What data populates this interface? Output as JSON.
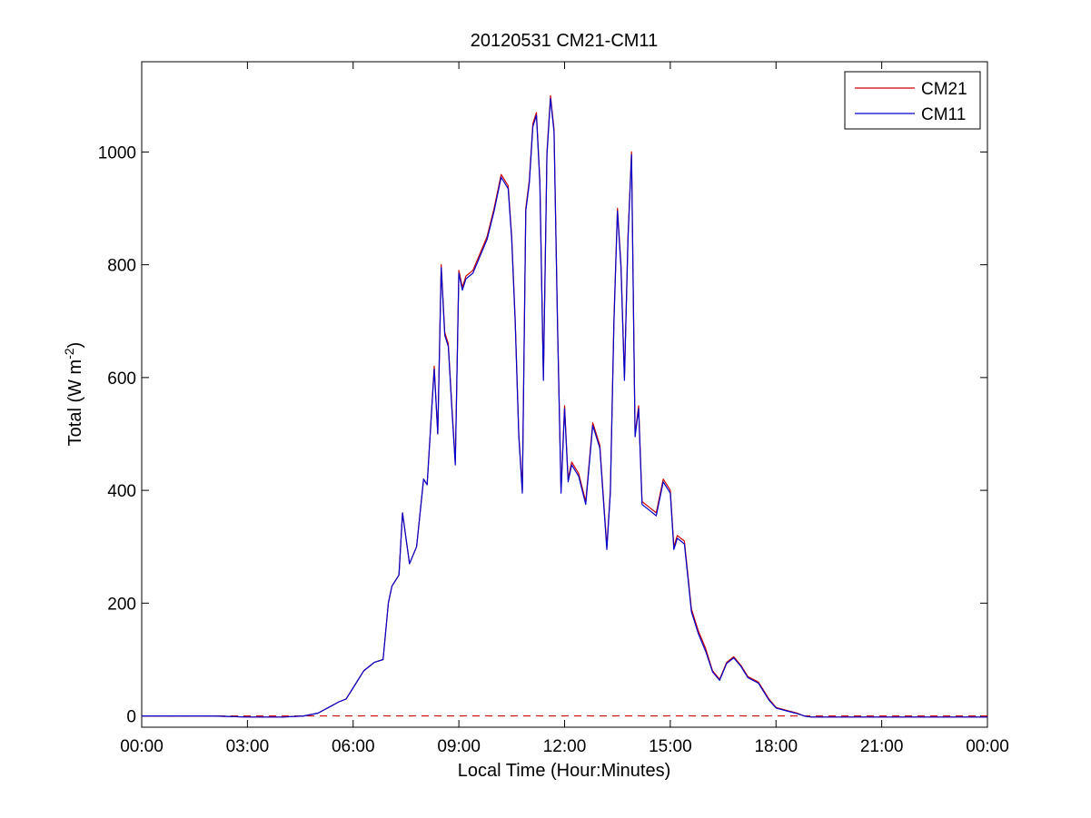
{
  "chart_data": {
    "type": "line",
    "title": "20120531 CM21-CM11",
    "xlabel": "Local Time (Hour:Minutes)",
    "ylabel": {
      "prefix": "Total (W m",
      "superscript": "-2",
      "suffix": ")"
    },
    "xlim": [
      0,
      24
    ],
    "ylim": [
      -20,
      1160
    ],
    "xticks": [
      0,
      3,
      6,
      9,
      12,
      15,
      18,
      21,
      24
    ],
    "xtick_labels": [
      "00:00",
      "03:00",
      "06:00",
      "09:00",
      "12:00",
      "15:00",
      "18:00",
      "21:00",
      "00:00"
    ],
    "yticks": [
      0,
      200,
      400,
      600,
      800,
      1000
    ],
    "ytick_labels": [
      "0",
      "200",
      "400",
      "600",
      "800",
      "1000"
    ],
    "grid": false,
    "legend_position": "top-right",
    "zero_reference": {
      "y": 0,
      "style": "dashed",
      "color": "#cc0000"
    },
    "series": [
      {
        "name": "CM21",
        "color": "#cc0000",
        "x": [
          0,
          2.0,
          3.0,
          4.0,
          4.6,
          5.0,
          5.3,
          5.6,
          5.8,
          6.0,
          6.3,
          6.6,
          6.85,
          7.0,
          7.1,
          7.3,
          7.4,
          7.6,
          7.8,
          8.0,
          8.1,
          8.3,
          8.4,
          8.5,
          8.6,
          8.7,
          8.8,
          8.9,
          9.0,
          9.1,
          9.2,
          9.4,
          9.6,
          9.8,
          10.0,
          10.2,
          10.4,
          10.5,
          10.6,
          10.7,
          10.8,
          10.9,
          11.0,
          11.1,
          11.2,
          11.3,
          11.4,
          11.5,
          11.6,
          11.7,
          11.8,
          11.9,
          12.0,
          12.1,
          12.2,
          12.4,
          12.6,
          12.8,
          13.0,
          13.2,
          13.3,
          13.4,
          13.5,
          13.6,
          13.7,
          13.8,
          13.9,
          14.0,
          14.1,
          14.2,
          14.4,
          14.6,
          14.8,
          15.0,
          15.1,
          15.2,
          15.4,
          15.6,
          15.8,
          16.0,
          16.2,
          16.4,
          16.6,
          16.8,
          17.0,
          17.2,
          17.5,
          17.8,
          18.0,
          18.3,
          18.6,
          18.8,
          19.0,
          20.0,
          21.0,
          22.0,
          24.0
        ],
        "y": [
          0,
          0,
          -2,
          -2,
          0,
          5,
          15,
          25,
          30,
          50,
          80,
          95,
          100,
          200,
          230,
          250,
          360,
          270,
          300,
          420,
          410,
          620,
          500,
          800,
          680,
          660,
          550,
          450,
          790,
          760,
          780,
          790,
          820,
          850,
          900,
          960,
          940,
          850,
          700,
          500,
          400,
          900,
          950,
          1050,
          1070,
          950,
          600,
          1000,
          1100,
          1040,
          700,
          400,
          550,
          420,
          450,
          430,
          380,
          520,
          480,
          300,
          400,
          700,
          900,
          800,
          600,
          850,
          1000,
          500,
          550,
          380,
          370,
          360,
          420,
          400,
          300,
          320,
          310,
          190,
          150,
          120,
          80,
          65,
          95,
          105,
          90,
          70,
          60,
          30,
          15,
          10,
          5,
          0,
          -2,
          -2,
          -2,
          -2,
          -2
        ]
      },
      {
        "name": "CM11",
        "color": "#0000cc",
        "x": [
          0,
          2.0,
          3.0,
          4.0,
          4.6,
          5.0,
          5.3,
          5.6,
          5.8,
          6.0,
          6.3,
          6.6,
          6.85,
          7.0,
          7.1,
          7.3,
          7.4,
          7.6,
          7.8,
          8.0,
          8.1,
          8.3,
          8.4,
          8.5,
          8.6,
          8.7,
          8.8,
          8.9,
          9.0,
          9.1,
          9.2,
          9.4,
          9.6,
          9.8,
          10.0,
          10.2,
          10.4,
          10.5,
          10.6,
          10.7,
          10.8,
          10.9,
          11.0,
          11.1,
          11.2,
          11.3,
          11.4,
          11.5,
          11.6,
          11.7,
          11.8,
          11.9,
          12.0,
          12.1,
          12.2,
          12.4,
          12.6,
          12.8,
          13.0,
          13.2,
          13.3,
          13.4,
          13.5,
          13.6,
          13.7,
          13.8,
          13.9,
          14.0,
          14.1,
          14.2,
          14.4,
          14.6,
          14.8,
          15.0,
          15.1,
          15.2,
          15.4,
          15.6,
          15.8,
          16.0,
          16.2,
          16.4,
          16.6,
          16.8,
          17.0,
          17.2,
          17.5,
          17.8,
          18.0,
          18.3,
          18.6,
          18.8,
          19.0,
          20.0,
          21.0,
          22.0,
          24.0
        ],
        "y": [
          0,
          0,
          -2,
          -2,
          0,
          5,
          15,
          25,
          30,
          50,
          80,
          95,
          100,
          200,
          230,
          250,
          360,
          270,
          300,
          420,
          410,
          615,
          500,
          795,
          675,
          655,
          545,
          445,
          785,
          755,
          775,
          785,
          815,
          845,
          895,
          955,
          935,
          845,
          695,
          495,
          395,
          895,
          945,
          1045,
          1065,
          945,
          595,
          995,
          1095,
          1035,
          695,
          395,
          545,
          415,
          445,
          425,
          375,
          515,
          475,
          295,
          395,
          695,
          895,
          795,
          595,
          845,
          995,
          495,
          545,
          375,
          365,
          355,
          415,
          395,
          295,
          315,
          305,
          185,
          145,
          115,
          78,
          63,
          93,
          103,
          88,
          68,
          58,
          28,
          14,
          9,
          4,
          0,
          -2,
          -2,
          -2,
          -2,
          -2
        ]
      }
    ]
  }
}
